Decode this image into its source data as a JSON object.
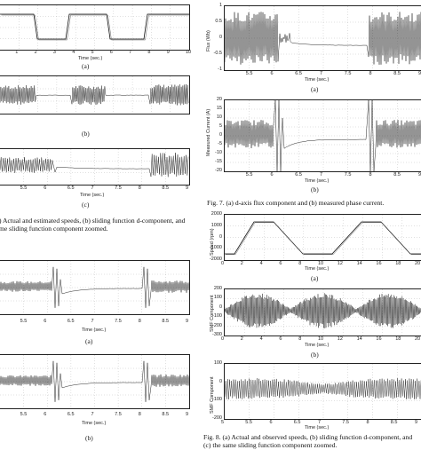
{
  "time_label": "Time (sec.)",
  "left_column": {
    "panel_a": {
      "sublabel": "(a)",
      "x_ticks": [
        "1",
        "2",
        "3",
        "4",
        "5",
        "6",
        "7",
        "8",
        "9",
        "10"
      ]
    },
    "panel_b": {
      "sublabel": "(b)"
    },
    "panel_c": {
      "sublabel": "(c)",
      "x_ticks": [
        "5.5",
        "6",
        "6.5",
        "7",
        "7.5",
        "8",
        "8.5",
        "9"
      ]
    },
    "caption_lines": [
      ") Actual and estimated speeds, (b) sliding function d-component, and",
      "me sliding function component zoomed."
    ],
    "panel_a2": {
      "sublabel": "(a)",
      "x_ticks": [
        "5.5",
        "6",
        "6.5",
        "7",
        "7.5",
        "8",
        "8.5",
        "9"
      ]
    },
    "panel_b2": {
      "sublabel": "(b)",
      "x_ticks": [
        "5.5",
        "6",
        "6.5",
        "7",
        "7.5",
        "8",
        "8.5",
        "9"
      ]
    }
  },
  "right_column": {
    "fig7_a": {
      "ylabel": "Flux (Wb)",
      "y_ticks": [
        "1",
        "0.5",
        "0",
        "-0.5",
        "-1"
      ],
      "x_ticks": [
        "5.5",
        "6",
        "6.5",
        "7",
        "7.5",
        "8",
        "8.5",
        "9"
      ],
      "sublabel": "(a)"
    },
    "fig7_b": {
      "ylabel": "Measured Current (A)",
      "y_ticks": [
        "20",
        "15",
        "10",
        "5",
        "0",
        "-5",
        "-10",
        "-15",
        "-20"
      ],
      "x_ticks": [
        "5.5",
        "6",
        "6.5",
        "7",
        "7.5",
        "8",
        "8.5",
        "9"
      ],
      "sublabel": "(b)"
    },
    "fig7_caption": "Fig. 7.    (a) d-axis flux component and (b) measured phase current.",
    "fig8_a": {
      "ylabel": "Speed (rpm)",
      "y_ticks": [
        "2000",
        "1000",
        "0",
        "-1000",
        "-2000"
      ],
      "x_ticks": [
        "0",
        "2",
        "4",
        "6",
        "8",
        "10",
        "12",
        "14",
        "16",
        "18",
        "20"
      ],
      "sublabel": "(a)"
    },
    "fig8_b": {
      "ylabel": "SMF Component",
      "y_ticks": [
        "200",
        "100",
        "0",
        "-100",
        "-200",
        "-300"
      ],
      "x_ticks": [
        "0",
        "2",
        "4",
        "6",
        "8",
        "10",
        "12",
        "14",
        "16",
        "18",
        "20"
      ],
      "sublabel": "(b)"
    },
    "fig8_c": {
      "ylabel": "SMF Component",
      "y_ticks": [
        "100",
        "0",
        "-100",
        "-200"
      ],
      "x_ticks": [
        "5",
        "5.5",
        "6",
        "6.5",
        "7",
        "7.5",
        "8",
        "8.5",
        "9"
      ]
    },
    "fig8_caption_lines": [
      "Fig. 8.    (a) Actual and observed speeds, (b) sliding function d-component, and",
      "(c) the same sliding function component zoomed."
    ]
  }
}
